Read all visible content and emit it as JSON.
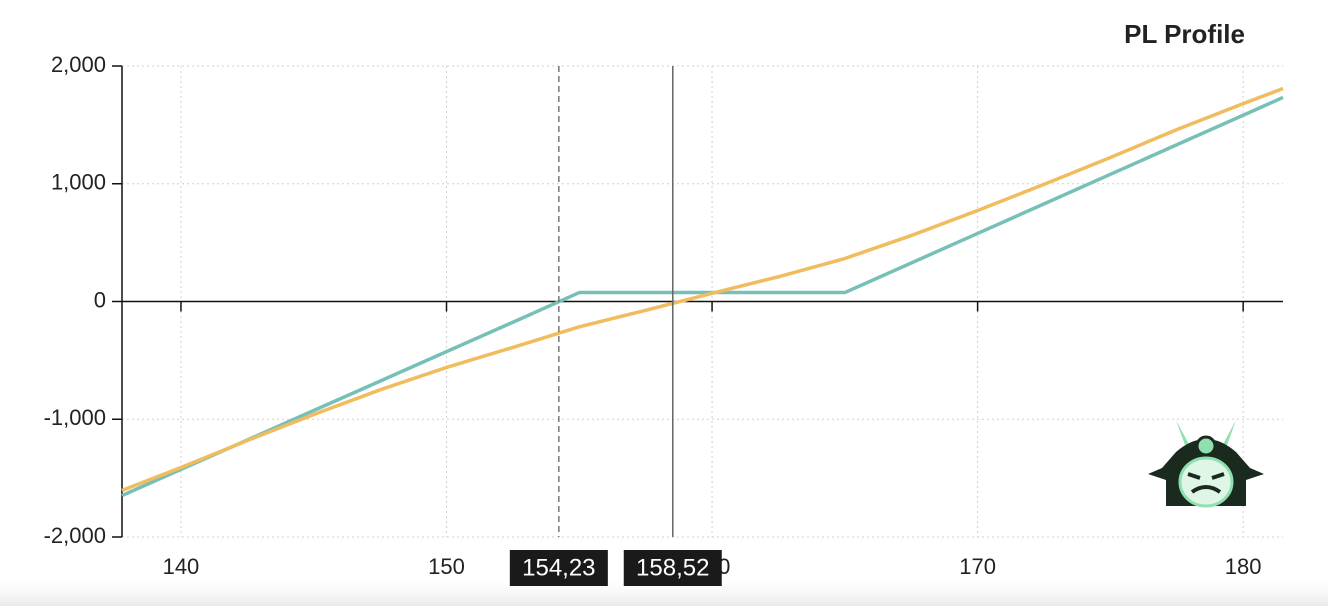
{
  "chart_data": {
    "type": "line",
    "title": "PL Profile",
    "x": [
      137.78,
      140,
      142.5,
      145,
      147.5,
      150,
      152.5,
      155,
      157.5,
      160,
      162.5,
      165,
      167.5,
      170,
      172.5,
      175,
      177.5,
      180,
      181.5
    ],
    "series": [
      {
        "color": "#76c0b8",
        "values": [
          -1648,
          -1426,
          -1176,
          -926,
          -676,
          -426,
          -176,
          76,
          76,
          76,
          76,
          76,
          327,
          578,
          829,
          1080,
          1331,
          1582,
          1733
        ]
      },
      {
        "color": "#f0bc5e",
        "values": [
          -1605,
          -1410,
          -1180,
          -960,
          -750,
          -560,
          -390,
          -215,
          -75,
          70,
          210,
          365,
          560,
          773,
          995,
          1223,
          1460,
          1680,
          1809
        ]
      }
    ],
    "xlim": [
      137.78,
      181.5
    ],
    "xticks": [
      140,
      150,
      160,
      170,
      180
    ],
    "ylim": [
      -2000,
      2000
    ],
    "yticks": [
      {
        "value": -2000,
        "label": "-2,000"
      },
      {
        "value": -1000,
        "label": "-1,000"
      },
      0,
      {
        "value": 1000,
        "label": "1,000"
      },
      {
        "value": 2000,
        "label": "2,000"
      }
    ],
    "grid": true,
    "markers": [
      {
        "value": 154.23,
        "label": "154,23",
        "style": "dashed"
      },
      {
        "value": 158.52,
        "label": "158,52",
        "style": "solid"
      }
    ]
  }
}
